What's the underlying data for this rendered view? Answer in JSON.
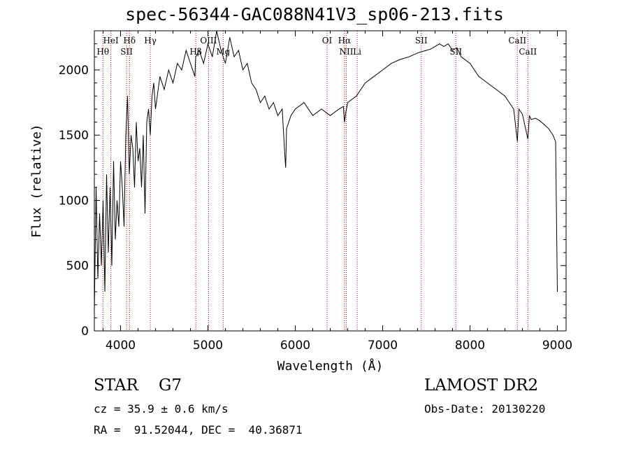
{
  "title": "spec-56344-GAC088N41V3_sp06-213.fits",
  "chart_data": {
    "type": "line",
    "title": "spec-56344-GAC088N41V3_sp06-213.fits",
    "xlabel": "Wavelength (Å)",
    "ylabel": "Flux (relative)",
    "xlim": [
      3700,
      9100
    ],
    "ylim": [
      0,
      2300
    ],
    "x_ticks": [
      4000,
      5000,
      6000,
      7000,
      8000,
      9000
    ],
    "y_ticks": [
      0,
      500,
      1000,
      1500,
      2000
    ],
    "grid": false,
    "series": [
      {
        "x": [
          3700,
          3720,
          3740,
          3760,
          3780,
          3800,
          3820,
          3840,
          3860,
          3880,
          3900,
          3920,
          3940,
          3960,
          3980,
          4000,
          4020,
          4040,
          4060,
          4080,
          4100,
          4120,
          4140,
          4160,
          4180,
          4200,
          4220,
          4240,
          4260,
          4280,
          4300,
          4320,
          4340,
          4360,
          4380,
          4400,
          4450,
          4500,
          4550,
          4600,
          4650,
          4700,
          4750,
          4800,
          4850,
          4860,
          4900,
          4950,
          5000,
          5050,
          5100,
          5150,
          5200,
          5250,
          5300,
          5350,
          5400,
          5450,
          5500,
          5550,
          5600,
          5650,
          5700,
          5750,
          5800,
          5850,
          5880,
          5890,
          5900,
          5950,
          6000,
          6100,
          6200,
          6300,
          6400,
          6500,
          6550,
          6563,
          6580,
          6600,
          6700,
          6800,
          6900,
          7000,
          7100,
          7200,
          7300,
          7400,
          7500,
          7550,
          7600,
          7650,
          7700,
          7750,
          7800,
          7850,
          7900,
          8000,
          8100,
          8200,
          8300,
          8400,
          8450,
          8500,
          8542,
          8560,
          8600,
          8662,
          8680,
          8700,
          8750,
          8800,
          8850,
          8900,
          8950,
          8980,
          9000
        ],
        "y": [
          150,
          1100,
          400,
          900,
          500,
          1000,
          300,
          1200,
          600,
          1100,
          500,
          1300,
          700,
          1000,
          800,
          1300,
          1100,
          800,
          1500,
          1800,
          1200,
          1500,
          1400,
          1100,
          1600,
          1300,
          1400,
          1100,
          1500,
          900,
          1600,
          1700,
          1500,
          1800,
          1900,
          1700,
          1950,
          1850,
          2000,
          1900,
          2050,
          2000,
          2150,
          2050,
          1950,
          2100,
          2150,
          2050,
          2200,
          2100,
          2300,
          2150,
          2050,
          2250,
          2100,
          2150,
          2000,
          2050,
          1900,
          1850,
          1750,
          1800,
          1700,
          1750,
          1650,
          1700,
          1350,
          1250,
          1550,
          1650,
          1700,
          1750,
          1650,
          1700,
          1650,
          1700,
          1720,
          1600,
          1680,
          1750,
          1800,
          1900,
          1950,
          2000,
          2050,
          2080,
          2100,
          2130,
          2150,
          2160,
          2180,
          2200,
          2180,
          2200,
          2150,
          2170,
          2100,
          2050,
          1950,
          1900,
          1850,
          1800,
          1750,
          1700,
          1450,
          1700,
          1660,
          1470,
          1650,
          1620,
          1630,
          1610,
          1580,
          1550,
          1500,
          1450,
          300
        ]
      }
    ],
    "line_labels": [
      {
        "name": "HeI",
        "x": 3889
      },
      {
        "name": "Hθ",
        "x": 3798
      },
      {
        "name": "Hδ",
        "x": 4102
      },
      {
        "name": "SII",
        "x": 4069
      },
      {
        "name": "Hγ",
        "x": 4341
      },
      {
        "name": "Hβ",
        "x": 4861
      },
      {
        "name": "OIII",
        "x": 5007
      },
      {
        "name": "Mg",
        "x": 5175
      },
      {
        "name": "OI",
        "x": 6364
      },
      {
        "name": "NII",
        "x": 6584
      },
      {
        "name": "Hα",
        "x": 6563
      },
      {
        "name": "Li",
        "x": 6708
      },
      {
        "name": "SII",
        "x": 7442
      },
      {
        "name": "SII",
        "x": 7838
      },
      {
        "name": "CaII",
        "x": 8542
      },
      {
        "name": "CaII",
        "x": 8662
      }
    ]
  },
  "info": {
    "left_line1": "STAR    G7",
    "left_line2": "cz = 35.9 ± 0.6 km/s",
    "left_line3": "RA =  91.52044, DEC =  40.36871",
    "right_line1": "LAMOST DR2",
    "right_line2": "Obs-Date: 20130220"
  }
}
